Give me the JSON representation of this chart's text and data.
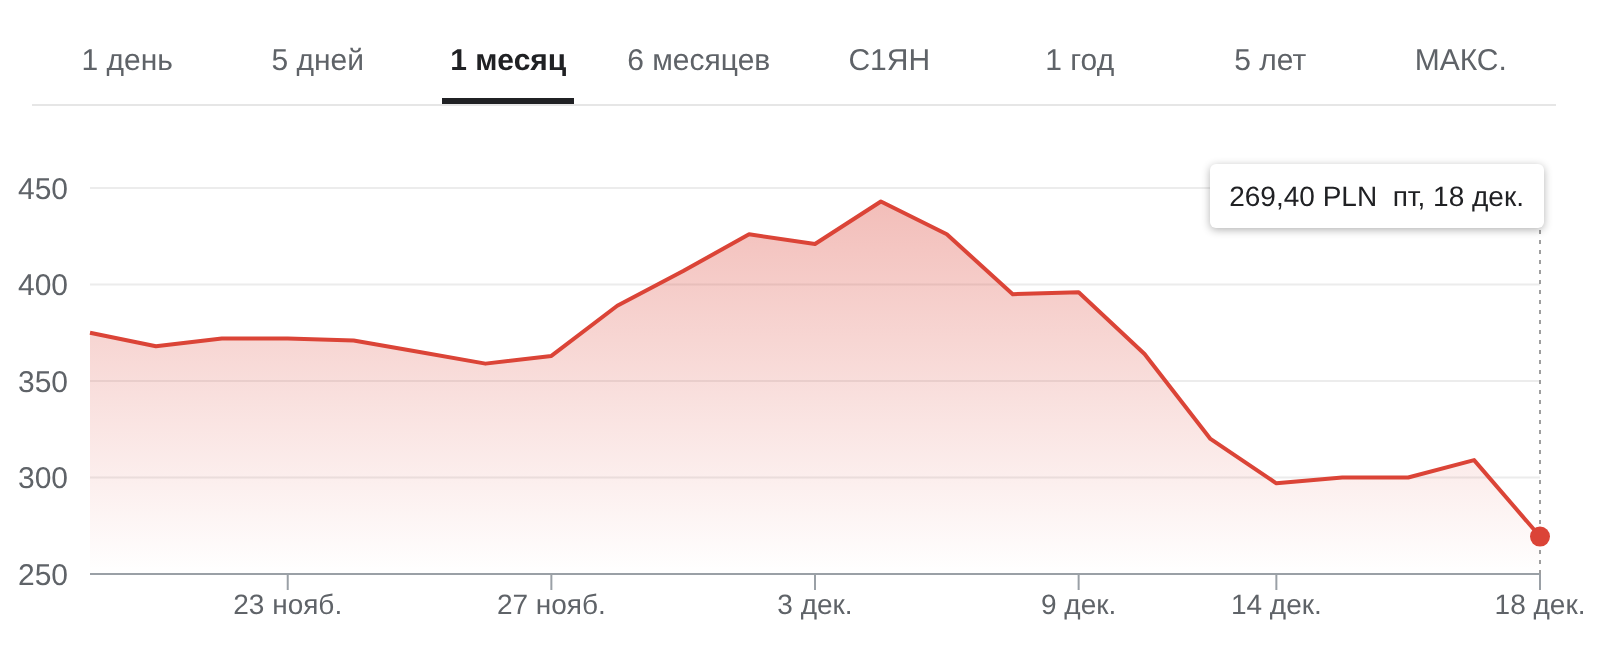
{
  "chart_data": {
    "type": "area",
    "categories": [
      null,
      null,
      null,
      "23 нояб.",
      null,
      null,
      null,
      "27 нояб.",
      null,
      null,
      null,
      "3 дек.",
      null,
      null,
      null,
      "9 дек.",
      null,
      null,
      "14 дек.",
      null,
      null,
      null,
      "18 дек."
    ],
    "series": [
      {
        "color": "#db4437",
        "values": [
          375,
          368,
          372,
          372,
          371,
          365,
          359,
          363,
          389,
          407,
          426,
          421,
          443,
          426,
          395,
          396,
          364,
          320,
          297,
          300,
          300,
          309,
          269.4
        ]
      }
    ],
    "ylim": [
      250,
      450
    ],
    "yticks": [
      250,
      300,
      350,
      400,
      450
    ],
    "grid": "y",
    "marker": "none",
    "line_style": "solid",
    "ref_lines": [
      {
        "axis": "x",
        "value": "18 дек.",
        "line_style": "dotted",
        "color": "#9e9e9e"
      }
    ],
    "annotations": [
      "1 день",
      "5 дней",
      "1 месяц",
      "6 месяцев",
      "С1ЯН",
      "1 год",
      "5 лет",
      "МАКС.",
      "269,40 PLN  пт, 18 дек."
    ]
  }
}
